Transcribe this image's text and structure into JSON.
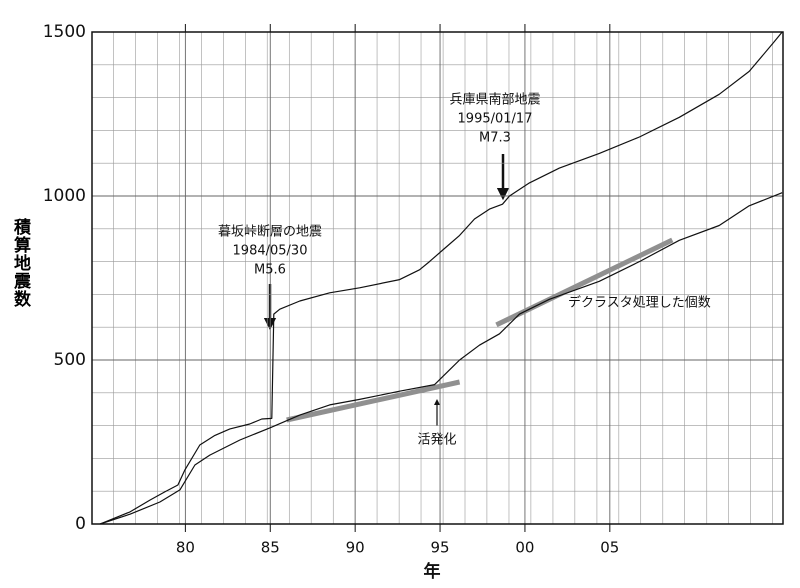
{
  "chart_data": {
    "type": "line",
    "x_label": "年",
    "y_label": "積算地震数",
    "xlim": [
      74.5,
      115.2
    ],
    "ylim": [
      0,
      1500
    ],
    "xticks": [
      80,
      85,
      90,
      95,
      {
        "value": 100,
        "label": "00"
      },
      {
        "value": 105,
        "label": "05"
      }
    ],
    "yticks": [
      0,
      500,
      1000,
      1500
    ],
    "xgrid": [
      75.76,
      77.06,
      78.35,
      79.65,
      80.94,
      82.24,
      83.53,
      84.82,
      86.12,
      87.41,
      88.71,
      90,
      91.29,
      92.59,
      93.88,
      95.18,
      96.47,
      97.76,
      99.06,
      100.35,
      101.65,
      102.94,
      104.24,
      105.53,
      106.82,
      108.12,
      109.41,
      110.71,
      112,
      113.29,
      114.59
    ],
    "ygrid": [
      100,
      200,
      300,
      400,
      600,
      700,
      800,
      900,
      1100,
      1200,
      1300,
      1400
    ],
    "grid": true,
    "series": [
      {
        "color": "#111111",
        "x": [
          74.97,
          76.74,
          77.91,
          78.79,
          79.56,
          79.97,
          80.85,
          81.74,
          82.62,
          83.79,
          84.5,
          85.09,
          85.21,
          85.56,
          86.74,
          88.5,
          90.26,
          92.62,
          93.79,
          94.38,
          95.26,
          96.15,
          97.03,
          97.91,
          98.68,
          99.09,
          100.26,
          102.03,
          104.38,
          106.74,
          109.09,
          111.44,
          113.21,
          114.68,
          115.15
        ],
        "values": [
          0,
          37,
          73,
          98,
          119,
          165,
          241,
          270,
          290,
          305,
          320,
          322,
          640,
          655,
          680,
          705,
          720,
          745,
          775,
          800,
          840,
          880,
          930,
          960,
          975,
          1000,
          1040,
          1085,
          1130,
          1180,
          1240,
          1310,
          1380,
          1470,
          1500
        ]
      },
      {
        "color": "#111111",
        "x": [
          74.97,
          76.74,
          78.5,
          79.68,
          80.56,
          81.44,
          83.21,
          84.97,
          86.74,
          88.5,
          90.26,
          92.62,
          94.68,
          95.56,
          96.15,
          97.32,
          98.5,
          99.68,
          101.44,
          104.38,
          106.74,
          109.09,
          111.44,
          113.21,
          115.15
        ],
        "values": [
          0,
          30,
          67,
          104,
          180,
          210,
          256,
          293,
          332,
          363,
          380,
          405,
          425,
          470,
          500,
          545,
          580,
          640,
          685,
          740,
          800,
          865,
          910,
          970,
          1010
        ]
      }
    ],
    "trend_lines": [
      {
        "color": "#909090",
        "x": [
          85.97,
          96.15
        ],
        "values": [
          317,
          433
        ]
      },
      {
        "color": "#909090",
        "x": [
          98.32,
          108.68
        ],
        "values": [
          607,
          866
        ]
      }
    ],
    "annotations": [
      {
        "lines": [
          "暮坂峠断層の地震",
          "1984/05/30",
          "M5.6"
        ]
      },
      {
        "lines": [
          "兵庫県南部地震",
          "1995/01/17",
          "M7.3"
        ]
      },
      {
        "lines": [
          "デクラスタ処理した個数"
        ]
      },
      {
        "lines": [
          "活発化"
        ]
      }
    ]
  }
}
